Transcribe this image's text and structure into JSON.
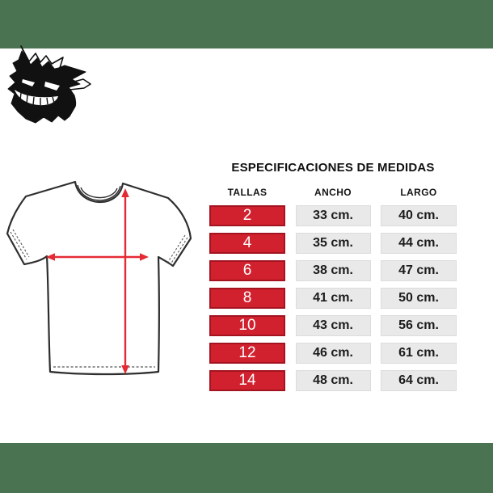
{
  "page": {
    "background_color": "#ffffff",
    "band_color": "#4a7351"
  },
  "logo": {
    "icon": "gengar-silhouette-icon"
  },
  "diagram": {
    "name": "tshirt-measurement-diagram",
    "outline_color": "#2e2e2e",
    "arrow_color": "#e42a34",
    "width_arrow": "ancho",
    "length_arrow": "largo"
  },
  "specs": {
    "title": "ESPECIFICACIONES DE MEDIDAS",
    "columns": [
      "TALLAS",
      "ANCHO",
      "LARGO"
    ],
    "rows": [
      {
        "talla": "2",
        "ancho": "33 cm.",
        "largo": "40 cm."
      },
      {
        "talla": "4",
        "ancho": "35 cm.",
        "largo": "44 cm."
      },
      {
        "talla": "6",
        "ancho": "38 cm.",
        "largo": "47 cm."
      },
      {
        "talla": "8",
        "ancho": "41 cm.",
        "largo": "50 cm."
      },
      {
        "talla": "10",
        "ancho": "43 cm.",
        "largo": "56 cm."
      },
      {
        "talla": "12",
        "ancho": "46 cm.",
        "largo": "61 cm."
      },
      {
        "talla": "14",
        "ancho": "48 cm.",
        "largo": "64 cm."
      }
    ],
    "size_cell_color": "#d2212e",
    "value_cell_color": "#e9e9e9"
  },
  "chart_data": {
    "type": "table",
    "title": "ESPECIFICACIONES DE MEDIDAS",
    "columns": [
      "TALLAS",
      "ANCHO",
      "LARGO"
    ],
    "categories": [
      "2",
      "4",
      "6",
      "8",
      "10",
      "12",
      "14"
    ],
    "unit": "cm",
    "series": [
      {
        "name": "ANCHO",
        "values": [
          33,
          35,
          38,
          41,
          43,
          46,
          48
        ]
      },
      {
        "name": "LARGO",
        "values": [
          40,
          44,
          47,
          50,
          56,
          61,
          64
        ]
      }
    ],
    "layout": "size rows highlighted red, measurement cells light gray, grid off"
  }
}
